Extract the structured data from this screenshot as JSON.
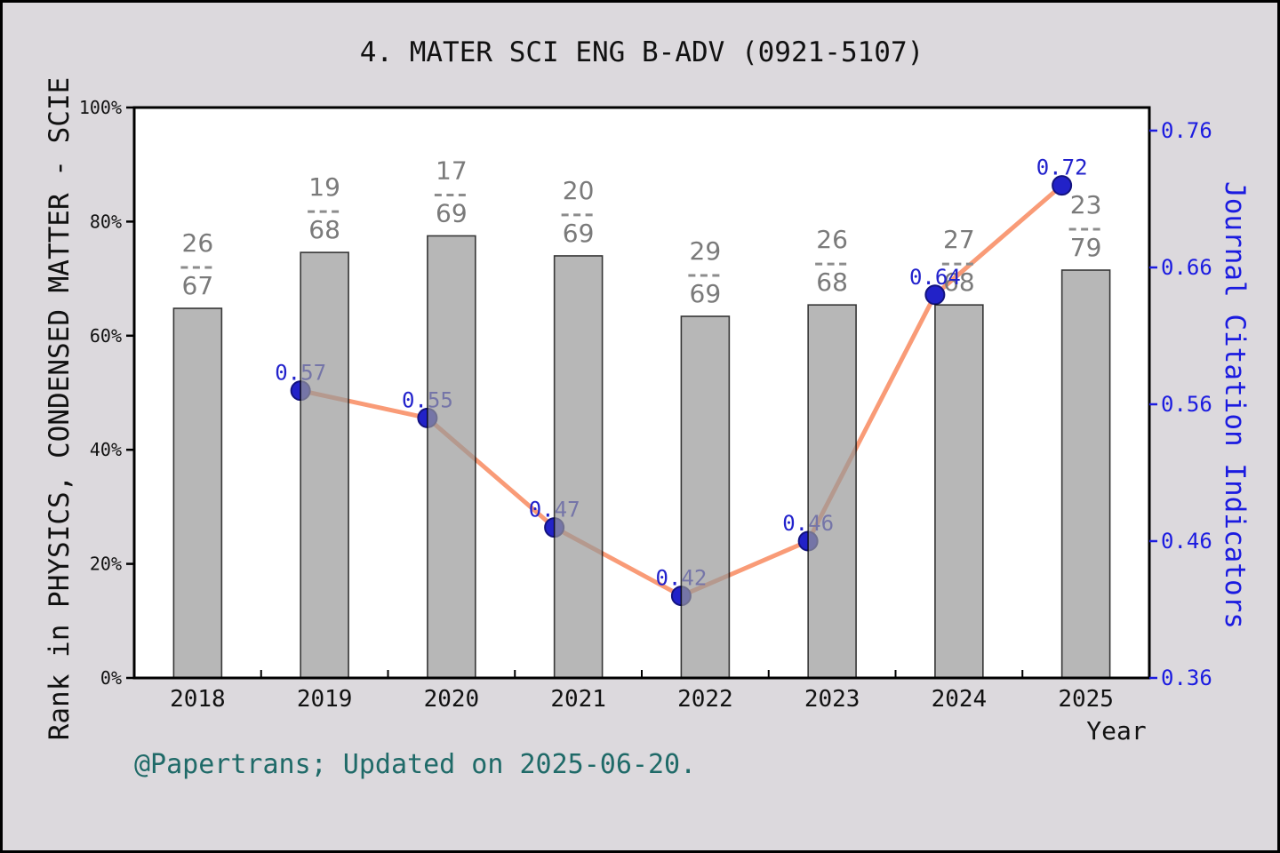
{
  "figure": {
    "title": "4. MATER SCI ENG B-ADV (0921-5107)",
    "footer": "@Papertrans; Updated on 2025-06-20.",
    "background_color": "#DCD9DD",
    "border_color": "#000000"
  },
  "chart_data": {
    "type": "bar-line-combo",
    "categories": [
      "2018",
      "2019",
      "2020",
      "2021",
      "2022",
      "2023",
      "2024",
      "2025"
    ],
    "xlabel": "Year",
    "left_axis": {
      "label": "Rank in PHYSICS, CONDENSED MATTER - SCIE",
      "ticks": [
        "0%",
        "20%",
        "40%",
        "60%",
        "80%",
        "100%"
      ],
      "range": [
        0,
        100
      ]
    },
    "right_axis": {
      "label": "Journal Citation Indicators",
      "ticks": [
        0.36,
        0.46,
        0.56,
        0.66,
        0.76
      ],
      "tick_labels": [
        "0.36",
        "0.46",
        "0.56",
        "0.66",
        "0.76"
      ]
    },
    "bars": {
      "name": "rank-percentile",
      "values_percent": [
        64.8,
        74.6,
        77.5,
        74.0,
        63.4,
        65.4,
        65.4,
        71.5
      ],
      "labels": [
        {
          "num": "26",
          "den": "67"
        },
        {
          "num": "19",
          "den": "68"
        },
        {
          "num": "17",
          "den": "69"
        },
        {
          "num": "20",
          "den": "69"
        },
        {
          "num": "29",
          "den": "69"
        },
        {
          "num": "26",
          "den": "68"
        },
        {
          "num": "27",
          "den": "68"
        },
        {
          "num": "23",
          "den": "79"
        }
      ]
    },
    "line": {
      "name": "journal-citation-indicators",
      "start_category": "2019",
      "values": [
        0.57,
        0.55,
        0.47,
        0.42,
        0.46,
        0.64,
        0.72
      ],
      "labels": [
        "0.57",
        "0.55",
        "0.47",
        "0.42",
        "0.46",
        "0.64",
        "0.72"
      ]
    },
    "colors": {
      "plot_bg": "#FFFFFF",
      "bar_fill": "#999999",
      "bar_edge": "#000000",
      "line": "#F99B77",
      "marker_fill": "#2222C8",
      "marker_edge": "#13137F",
      "value_label": "#2222CC",
      "right_axis": "#1B1BE0",
      "fraction_text": "#7A7A7A",
      "fraction_dash": "#8C8C8C",
      "text": "#111111"
    }
  }
}
